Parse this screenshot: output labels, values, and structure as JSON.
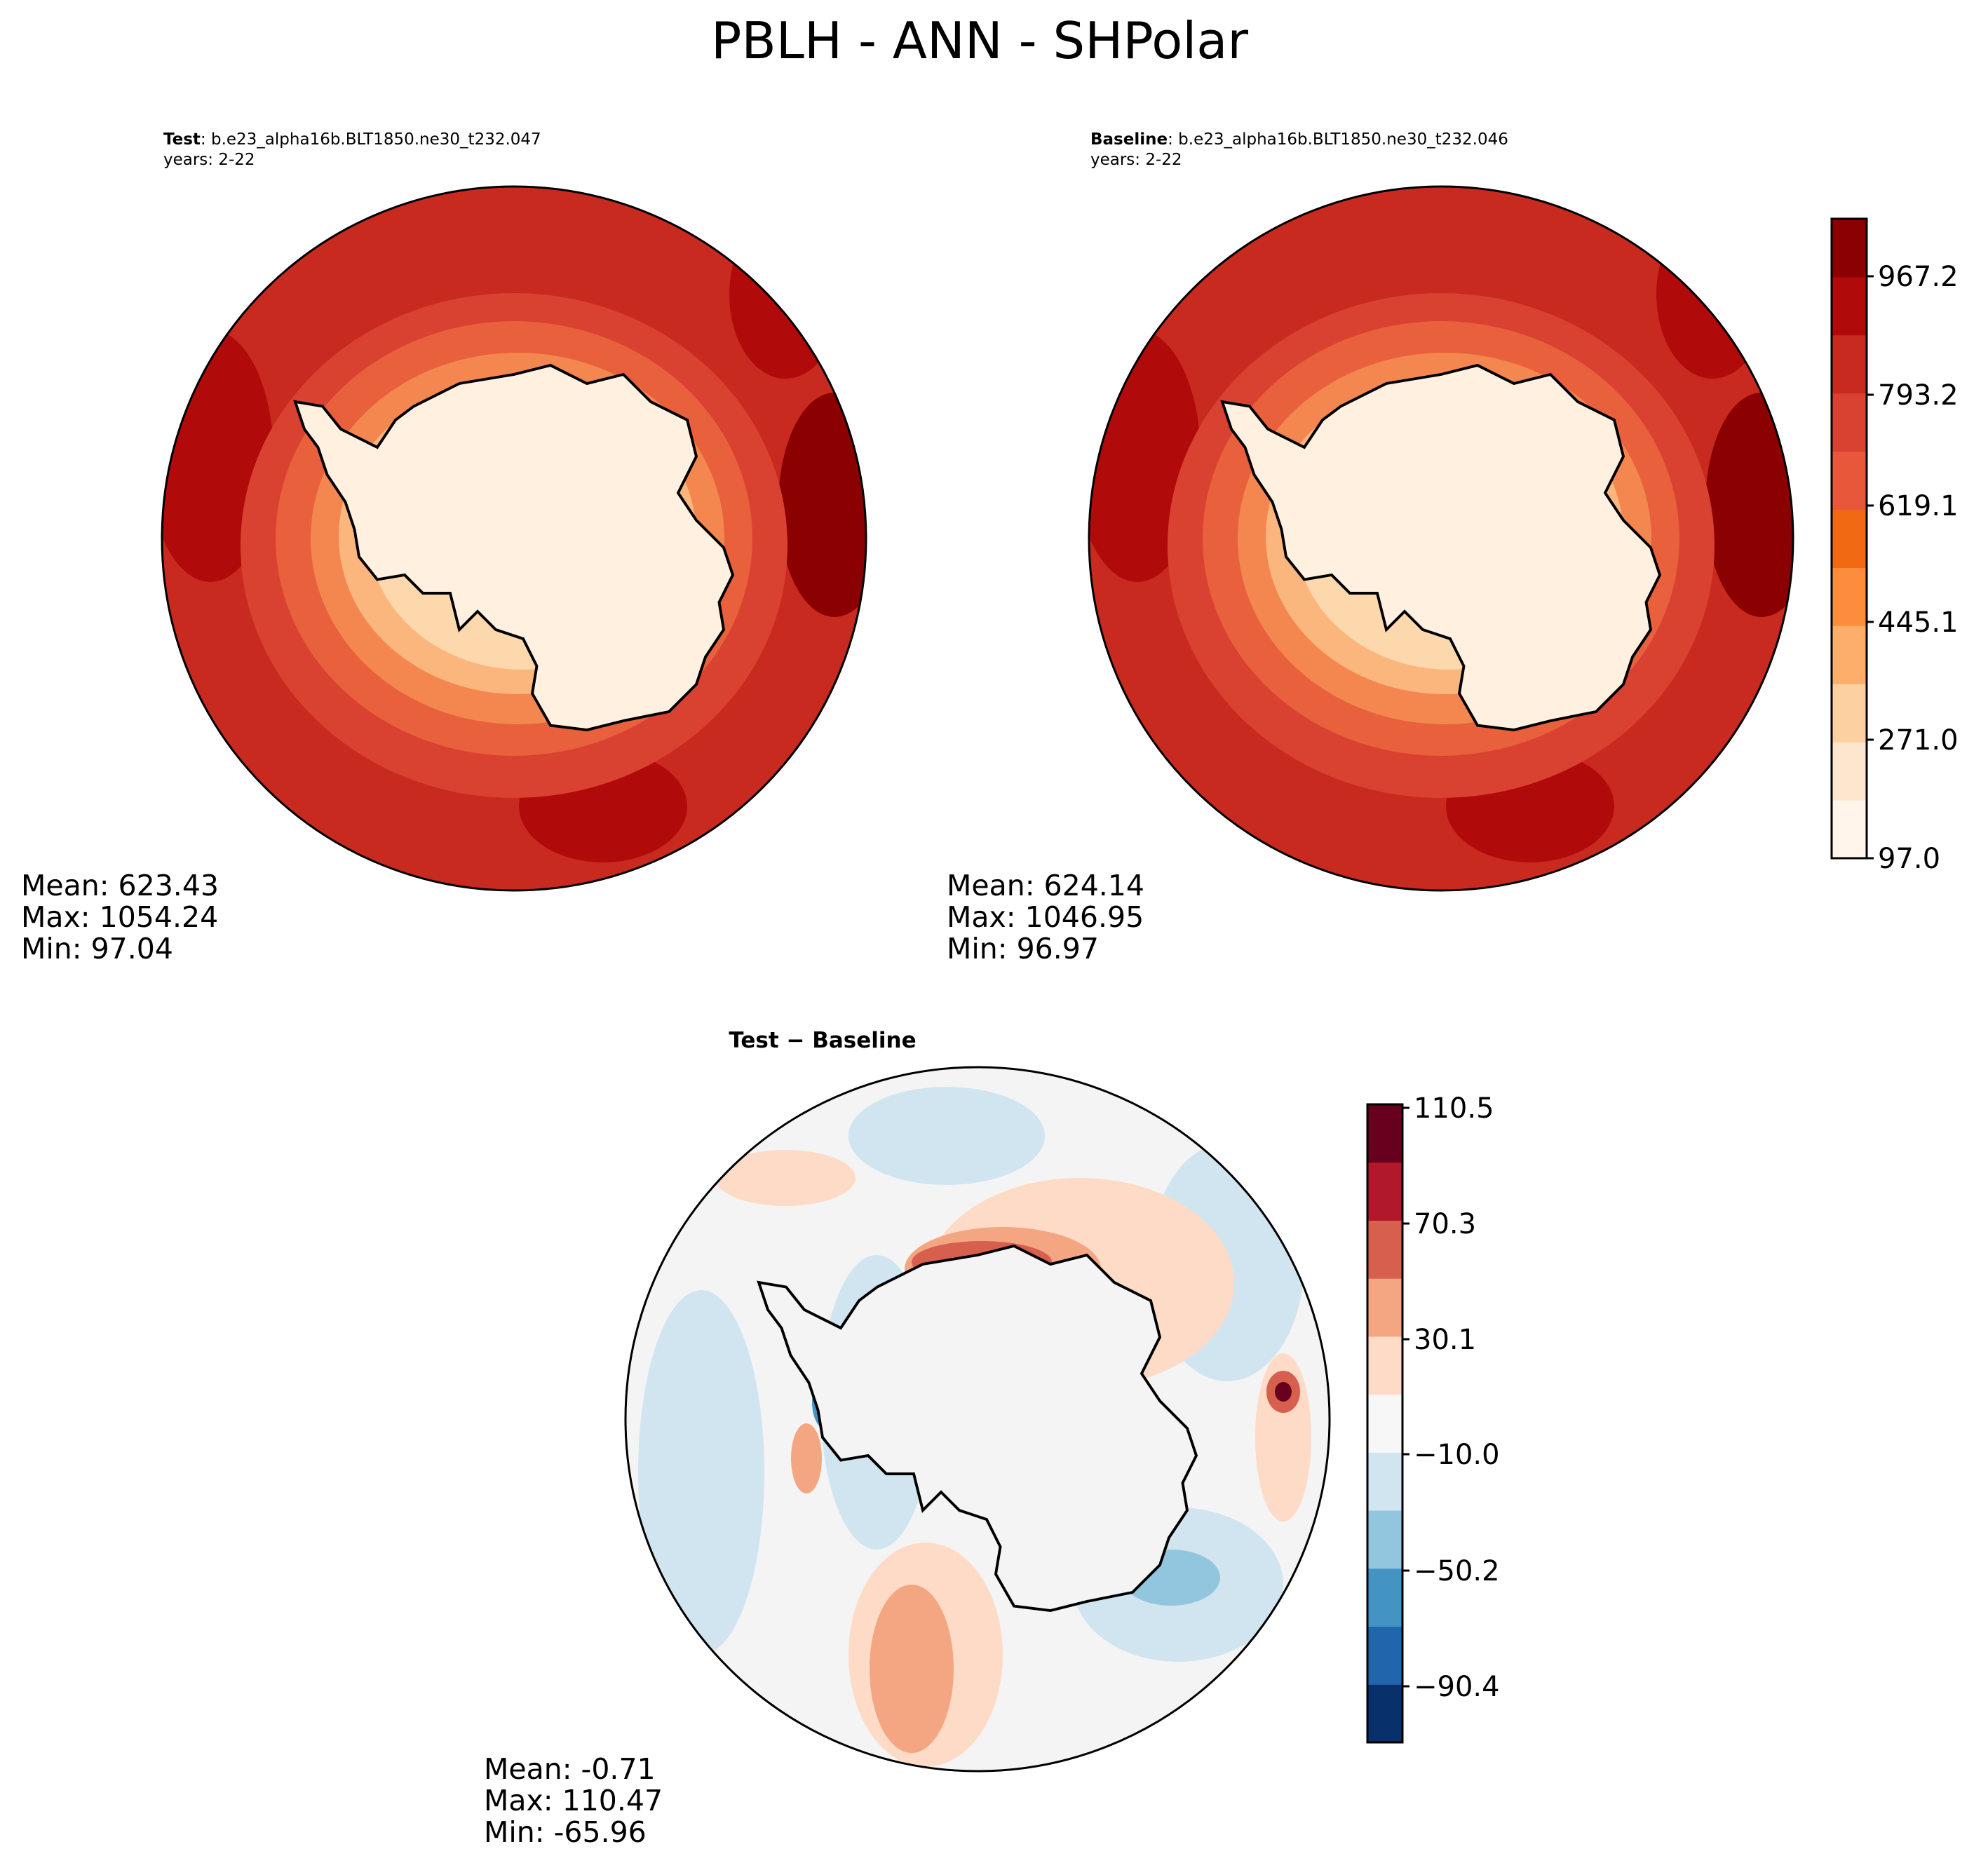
{
  "title": "PBLH - ANN - SHPolar",
  "panels": {
    "test": {
      "label_bold": "Test",
      "label_rest": ": b.e23_alpha16b.BLT1850.ne30_t232.047",
      "years": "years: 2-22",
      "mean": "Mean: 623.43",
      "max": "Max: 1054.24",
      "min": "Min: 97.04"
    },
    "baseline": {
      "label_bold": "Baseline",
      "label_rest": ": b.e23_alpha16b.BLT1850.ne30_t232.046",
      "years": "years: 2-22",
      "mean": "Mean: 624.14",
      "max": "Max: 1046.95",
      "min": "Min: 96.97"
    },
    "diff": {
      "label": "Test − Baseline",
      "mean": "Mean: -0.71",
      "max": "Max: 110.47",
      "min": "Min: -65.96"
    }
  },
  "colorbars": {
    "main": {
      "ticks": [
        "97.0",
        "271.0",
        "445.1",
        "619.1",
        "793.2",
        "967.2"
      ],
      "colors": [
        "#fff5eb",
        "#fee6ce",
        "#fdd0a2",
        "#fdae6b",
        "#fd8d3c",
        "#f16913",
        "#e8573a",
        "#d94130",
        "#c92a1f",
        "#b00b0a",
        "#8b0000"
      ]
    },
    "diff": {
      "ticks": [
        "110.5",
        "70.3",
        "30.1",
        "−10.0",
        "−50.2",
        "−90.4"
      ],
      "colors": [
        "#08306b",
        "#2166ac",
        "#4393c3",
        "#92c5de",
        "#d1e5f0",
        "#f7f7f7",
        "#fddbc7",
        "#f4a582",
        "#d6604d",
        "#b2182b",
        "#67001f"
      ]
    }
  },
  "map_colors": {
    "ocean_outer": "#c92a1f",
    "ocean_dark": "#b00b0a",
    "ring1": "#d94130",
    "ring2": "#e8603c",
    "ring3": "#f4874f",
    "ring4": "#fbb67e",
    "ring5": "#fdd8ad",
    "interior": "#fff0e0",
    "diff_bg": "#f4f4f4",
    "diff_blue": "#d1e5f0",
    "diff_blue2": "#92c5de",
    "diff_red": "#fddbc7",
    "diff_red2": "#f4a582",
    "diff_red3": "#d6604d",
    "coast": "#000000"
  }
}
